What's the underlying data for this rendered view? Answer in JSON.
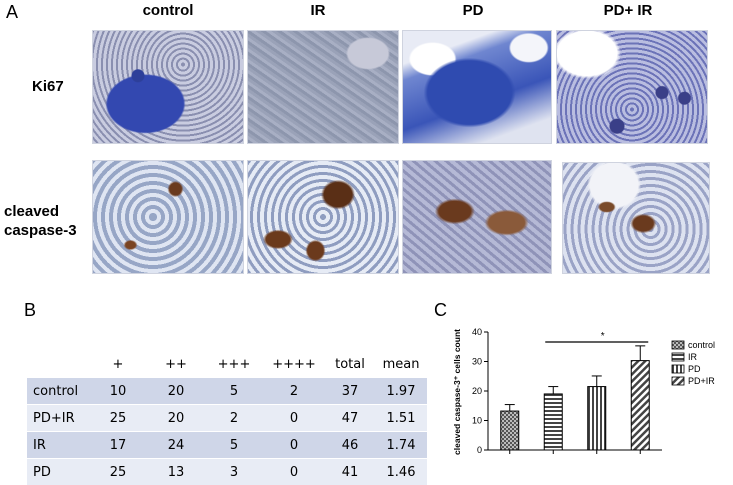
{
  "panel_a": {
    "letter": "A",
    "columns": [
      "control",
      "IR",
      "PD",
      "PD+ IR"
    ],
    "rows": [
      "Ki67",
      "cleaved caspase-3"
    ]
  },
  "panel_b": {
    "letter": "B",
    "header": [
      "",
      "+",
      "++",
      "+++",
      "++++",
      "total",
      "mean"
    ],
    "rows": [
      [
        "control",
        "10",
        "20",
        "5",
        "2",
        "37",
        "1.97"
      ],
      [
        "PD+IR",
        "25",
        "20",
        "2",
        "0",
        "47",
        "1.51"
      ],
      [
        "IR",
        "17",
        "24",
        "5",
        "0",
        "46",
        "1.74"
      ],
      [
        "PD",
        "25",
        "13",
        "3",
        "0",
        "41",
        "1.46"
      ]
    ]
  },
  "panel_c": {
    "letter": "C",
    "significance": "*"
  },
  "chart_data": {
    "type": "bar",
    "ylabel": "cleaved caspase-3⁺ cells count",
    "ylim": [
      0,
      40
    ],
    "yticks": [
      "0",
      "10",
      "20",
      "30",
      "40"
    ],
    "categories": [
      "control",
      "IR",
      "PD",
      "PD+IR"
    ],
    "values": [
      13.2,
      19.0,
      21.5,
      30.3
    ],
    "errors": [
      2.2,
      2.5,
      3.6,
      5.0
    ],
    "legend_position": "right",
    "legend": [
      "control",
      "IR",
      "PD",
      "PD+IR"
    ],
    "significance_bracket": {
      "from": "IR",
      "to": "PD+IR",
      "label": "*"
    }
  }
}
